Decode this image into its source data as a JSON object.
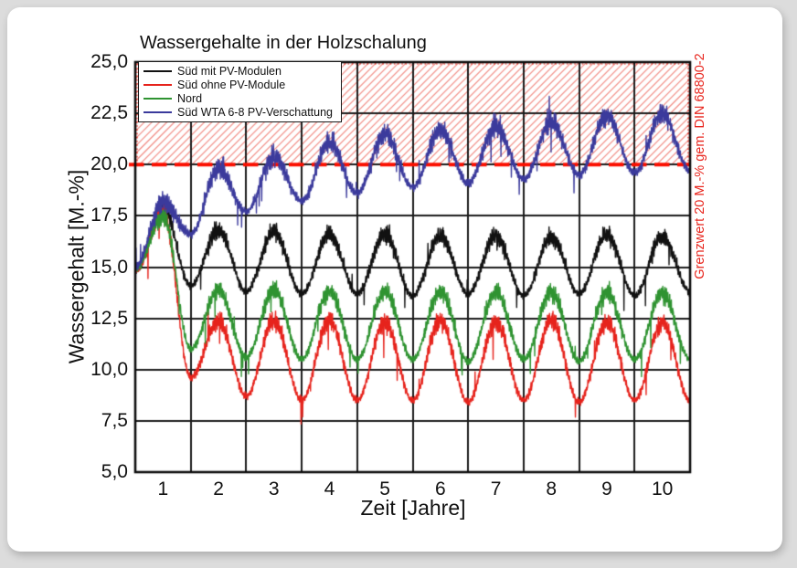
{
  "chart_data": {
    "type": "line",
    "title": "Wassergehalte in der Holzschalung",
    "xlabel": "Zeit [Jahre]",
    "ylabel": "Wassergehalt [M.-%]",
    "xlim": [
      0,
      10
    ],
    "ylim": [
      5,
      25
    ],
    "grid": true,
    "legend_position": "top-left",
    "y_ticks": [
      25.0,
      22.5,
      20.0,
      17.5,
      15.0,
      12.5,
      10.0,
      7.5,
      5.0
    ],
    "y_tick_labels": [
      "25,0",
      "22,5",
      "20,0",
      "17,5",
      "15,0",
      "12,5",
      "10,0",
      "7,5",
      "5,0"
    ],
    "x_tick_labels": [
      "1",
      "2",
      "3",
      "4",
      "5",
      "6",
      "7",
      "8",
      "9",
      "10"
    ],
    "x_tick_positions": [
      0.5,
      1.5,
      2.5,
      3.5,
      4.5,
      5.5,
      6.5,
      7.5,
      8.5,
      9.5
    ],
    "limit_line": {
      "value": 20,
      "label": "Grenzwert 20 M.-% gem. DIN 68800-2",
      "label_color": "#e8251d",
      "line_color": "#fb0f00",
      "style": "dashed",
      "hatch_above": true,
      "hatch_color": "#f0857d"
    },
    "series": [
      {
        "name": "Süd mit PV-Modulen",
        "color": "#111111",
        "noise": 0.27,
        "anchors": [
          [
            0,
            14.8
          ],
          [
            0.5,
            17.9
          ],
          [
            1,
            14.1
          ],
          [
            1.5,
            16.8
          ],
          [
            2,
            13.8
          ],
          [
            2.5,
            16.7
          ],
          [
            3,
            13.7
          ],
          [
            3.5,
            16.6
          ],
          [
            4,
            13.7
          ],
          [
            4.5,
            16.6
          ],
          [
            5,
            13.6
          ],
          [
            5.5,
            16.5
          ],
          [
            6,
            13.7
          ],
          [
            6.5,
            16.5
          ],
          [
            7,
            13.6
          ],
          [
            7.5,
            16.5
          ],
          [
            8,
            13.7
          ],
          [
            8.5,
            16.6
          ],
          [
            9,
            13.6
          ],
          [
            9.5,
            16.5
          ],
          [
            10,
            13.8
          ]
        ]
      },
      {
        "name": "Süd ohne PV-Module",
        "color": "#e6231c",
        "noise": 0.27,
        "anchors": [
          [
            0,
            14.8
          ],
          [
            0.5,
            17.7
          ],
          [
            1,
            9.6
          ],
          [
            1.5,
            12.4
          ],
          [
            2,
            8.7
          ],
          [
            2.5,
            12.4
          ],
          [
            3,
            8.5
          ],
          [
            3.5,
            12.4
          ],
          [
            4,
            8.5
          ],
          [
            4.5,
            12.3
          ],
          [
            5,
            8.5
          ],
          [
            5.5,
            12.4
          ],
          [
            6,
            8.4
          ],
          [
            6.5,
            12.3
          ],
          [
            7,
            8.5
          ],
          [
            7.5,
            12.4
          ],
          [
            8,
            8.4
          ],
          [
            8.5,
            12.3
          ],
          [
            9,
            8.5
          ],
          [
            9.5,
            12.3
          ],
          [
            10,
            8.5
          ]
        ]
      },
      {
        "name": "Nord",
        "color": "#2f9331",
        "noise": 0.27,
        "anchors": [
          [
            0,
            14.9
          ],
          [
            0.5,
            17.5
          ],
          [
            1,
            11.0
          ],
          [
            1.5,
            13.9
          ],
          [
            2,
            10.6
          ],
          [
            2.5,
            13.9
          ],
          [
            3,
            10.5
          ],
          [
            3.5,
            13.8
          ],
          [
            4,
            10.5
          ],
          [
            4.5,
            13.8
          ],
          [
            5,
            10.5
          ],
          [
            5.5,
            13.8
          ],
          [
            6,
            10.4
          ],
          [
            6.5,
            13.8
          ],
          [
            7,
            10.5
          ],
          [
            7.5,
            13.8
          ],
          [
            8,
            10.4
          ],
          [
            8.5,
            13.8
          ],
          [
            9,
            10.5
          ],
          [
            9.5,
            13.7
          ],
          [
            10,
            10.5
          ]
        ]
      },
      {
        "name": "Süd WTA 6-8 PV-Verschattung",
        "color": "#3b3a9c",
        "noise": 0.31,
        "anchors": [
          [
            0,
            15.0
          ],
          [
            0.5,
            18.2
          ],
          [
            1,
            16.6
          ],
          [
            1.5,
            19.8
          ],
          [
            2,
            17.7
          ],
          [
            2.5,
            20.4
          ],
          [
            3,
            18.2
          ],
          [
            3.5,
            21.1
          ],
          [
            4,
            18.6
          ],
          [
            4.5,
            21.5
          ],
          [
            5,
            18.9
          ],
          [
            5.5,
            21.7
          ],
          [
            6,
            19.1
          ],
          [
            6.5,
            21.9
          ],
          [
            7,
            19.3
          ],
          [
            7.5,
            22.1
          ],
          [
            8,
            19.5
          ],
          [
            8.5,
            22.4
          ],
          [
            9,
            19.6
          ],
          [
            9.5,
            22.5
          ],
          [
            10,
            19.7
          ]
        ]
      }
    ]
  }
}
